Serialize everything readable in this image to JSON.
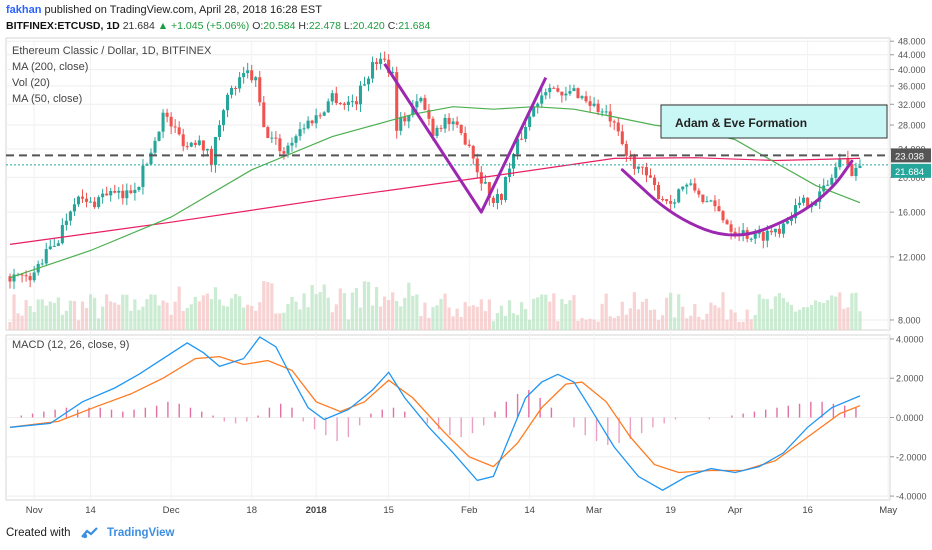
{
  "header": {
    "author": "fakhan",
    "published": "published on TradingView.com, April 28, 2018 16:28 EST",
    "symbol": "BITFINEX:ETCUSD, 1D",
    "last": "21.684",
    "change": "▲ +1.045 (+5.06%)",
    "o_label": "O:",
    "o": "20.584",
    "h_label": "H:",
    "h": "22.478",
    "l_label": "L:",
    "l": "20.420",
    "c_label": "C:",
    "c": "21.684"
  },
  "legend": {
    "title": "Ethereum Classic / Dollar, 1D, BITFINEX",
    "ma200": "MA (200, close)",
    "vol": "Vol (20)",
    "ma50": "MA (50, close)",
    "macd": "MACD (12, 26, close, 9)"
  },
  "annotation": "Adam & Eve Formation",
  "price_badges": {
    "level": "23.038",
    "last": "21.684"
  },
  "footer": {
    "created_with": "Created with",
    "brand": "TradingView"
  },
  "colors": {
    "up": "#26a69a",
    "down": "#ef5350",
    "ma50": "#4caf50",
    "ma200": "#e91e63",
    "pattern": "#9c27b0",
    "macd": "#2196f3",
    "signal": "#ff7b21",
    "annotation_bg": "#c9f7f5"
  },
  "chart_data": [
    {
      "type": "candlestick",
      "title": "Ethereum Classic / Dollar, 1D, BITFINEX",
      "y_ticks": [
        "48.000",
        "44.000",
        "40.000",
        "36.000",
        "32.000",
        "28.000",
        "24.000",
        "20.000",
        "16.000",
        "12.000",
        "8.000"
      ],
      "y_scale": "log",
      "ylim": [
        7.5,
        49
      ],
      "x_ticks": [
        "Nov",
        "14",
        "Dec",
        "18",
        "2018",
        "15",
        "Feb",
        "14",
        "Mar",
        "19",
        "Apr",
        "16",
        "May"
      ],
      "x_tick_index": [
        6,
        20,
        40,
        60,
        76,
        94,
        114,
        129,
        145,
        164,
        180,
        198,
        218
      ],
      "close_path": [
        [
          0,
          10.6
        ],
        [
          5,
          10.3
        ],
        [
          8,
          11.8
        ],
        [
          12,
          13.5
        ],
        [
          16,
          17.5
        ],
        [
          20,
          16.8
        ],
        [
          24,
          18.2
        ],
        [
          28,
          17.6
        ],
        [
          32,
          19.5
        ],
        [
          35,
          23.5
        ],
        [
          38,
          30
        ],
        [
          41,
          27
        ],
        [
          44,
          24.5
        ],
        [
          47,
          26
        ],
        [
          50,
          22
        ],
        [
          53,
          32
        ],
        [
          56,
          36
        ],
        [
          59,
          39
        ],
        [
          61,
          37
        ],
        [
          63,
          27
        ],
        [
          66,
          25
        ],
        [
          68,
          23.5
        ],
        [
          71,
          26.5
        ],
        [
          74,
          28.5
        ],
        [
          77,
          30
        ],
        [
          80,
          34
        ],
        [
          83,
          32
        ],
        [
          86,
          33
        ],
        [
          89,
          39
        ],
        [
          92,
          44
        ],
        [
          95,
          39
        ],
        [
          96,
          28
        ],
        [
          99,
          30
        ],
        [
          102,
          33
        ],
        [
          105,
          27
        ],
        [
          108,
          29
        ],
        [
          111,
          27
        ],
        [
          114,
          25
        ],
        [
          116,
          21
        ],
        [
          118,
          19
        ],
        [
          120,
          17
        ],
        [
          122,
          18
        ],
        [
          125,
          23
        ],
        [
          128,
          28
        ],
        [
          131,
          33
        ],
        [
          134,
          37
        ],
        [
          137,
          33
        ],
        [
          140,
          35
        ],
        [
          143,
          33
        ],
        [
          146,
          31
        ],
        [
          149,
          29
        ],
        [
          151,
          26
        ],
        [
          153,
          23
        ],
        [
          155,
          22
        ],
        [
          158,
          20
        ],
        [
          161,
          18
        ],
        [
          164,
          17
        ],
        [
          167,
          19
        ],
        [
          170,
          18.5
        ],
        [
          173,
          17
        ],
        [
          176,
          16
        ],
        [
          179,
          14.5
        ],
        [
          182,
          14
        ],
        [
          185,
          13.6
        ],
        [
          188,
          14
        ],
        [
          191,
          14.5
        ],
        [
          194,
          16
        ],
        [
          197,
          17
        ],
        [
          200,
          17.5
        ],
        [
          203,
          19
        ],
        [
          206,
          22.5
        ],
        [
          209,
          21
        ],
        [
          211,
          21.7
        ]
      ],
      "ma50_path": [
        [
          0,
          10.5
        ],
        [
          20,
          12.5
        ],
        [
          40,
          15.5
        ],
        [
          60,
          21
        ],
        [
          80,
          26
        ],
        [
          100,
          30
        ],
        [
          110,
          31.5
        ],
        [
          120,
          31
        ],
        [
          130,
          31.5
        ],
        [
          140,
          31
        ],
        [
          150,
          29.5
        ],
        [
          160,
          28
        ],
        [
          170,
          27
        ],
        [
          180,
          25.5
        ],
        [
          190,
          22
        ],
        [
          200,
          19
        ],
        [
          211,
          17
        ]
      ],
      "ma200_path": [
        [
          0,
          13
        ],
        [
          40,
          15
        ],
        [
          80,
          17.5
        ],
        [
          120,
          20.2
        ],
        [
          150,
          22.6
        ],
        [
          170,
          22.7
        ],
        [
          190,
          22.3
        ],
        [
          211,
          22.6
        ]
      ],
      "resistance_level": 23.038,
      "last_price": 21.684,
      "pattern_adam": [
        [
          93,
          41.5
        ],
        [
          117,
          16
        ],
        [
          133,
          38
        ]
      ],
      "pattern_eve": [
        [
          152,
          21
        ],
        [
          165,
          15.4
        ],
        [
          180,
          13.3
        ],
        [
          195,
          15.5
        ],
        [
          204,
          18.5
        ],
        [
          209,
          22.2
        ]
      ]
    },
    {
      "type": "line",
      "title": "MACD (12, 26, close, 9)",
      "y_ticks": [
        "4.0000",
        "2.0000",
        "0.0000",
        "-2.0000",
        "-4.0000"
      ],
      "ylim": [
        -4.2,
        4.2
      ],
      "series": [
        {
          "name": "MACD",
          "points": [
            [
              0,
              -0.5
            ],
            [
              10,
              -0.3
            ],
            [
              18,
              0.8
            ],
            [
              26,
              1.5
            ],
            [
              32,
              2.2
            ],
            [
              38,
              3.0
            ],
            [
              44,
              3.8
            ],
            [
              48,
              3.3
            ],
            [
              52,
              2.6
            ],
            [
              58,
              3.0
            ],
            [
              62,
              4.1
            ],
            [
              66,
              3.6
            ],
            [
              70,
              2.0
            ],
            [
              74,
              0.5
            ],
            [
              78,
              -0.1
            ],
            [
              84,
              0.4
            ],
            [
              90,
              1.4
            ],
            [
              94,
              2.3
            ],
            [
              98,
              1.0
            ],
            [
              104,
              -0.5
            ],
            [
              110,
              -1.8
            ],
            [
              116,
              -3.2
            ],
            [
              120,
              -3.0
            ],
            [
              124,
              -1.0
            ],
            [
              128,
              1.0
            ],
            [
              132,
              1.8
            ],
            [
              136,
              2.2
            ],
            [
              140,
              1.8
            ],
            [
              144,
              0.5
            ],
            [
              150,
              -1.5
            ],
            [
              156,
              -3.0
            ],
            [
              162,
              -3.7
            ],
            [
              168,
              -3.0
            ],
            [
              174,
              -2.6
            ],
            [
              180,
              -2.8
            ],
            [
              186,
              -2.5
            ],
            [
              192,
              -1.8
            ],
            [
              198,
              -0.5
            ],
            [
              204,
              0.5
            ],
            [
              211,
              1.1
            ]
          ]
        },
        {
          "name": "Signal",
          "points": [
            [
              0,
              -0.5
            ],
            [
              12,
              -0.2
            ],
            [
              22,
              0.6
            ],
            [
              30,
              1.2
            ],
            [
              38,
              2.0
            ],
            [
              46,
              3.0
            ],
            [
              52,
              3.1
            ],
            [
              58,
              2.7
            ],
            [
              64,
              2.9
            ],
            [
              70,
              2.4
            ],
            [
              76,
              0.8
            ],
            [
              82,
              0.3
            ],
            [
              88,
              0.8
            ],
            [
              94,
              1.9
            ],
            [
              100,
              1.0
            ],
            [
              108,
              -0.8
            ],
            [
              114,
              -2.0
            ],
            [
              120,
              -2.5
            ],
            [
              126,
              -1.3
            ],
            [
              132,
              0.5
            ],
            [
              138,
              1.7
            ],
            [
              142,
              1.8
            ],
            [
              148,
              0.8
            ],
            [
              154,
              -1.0
            ],
            [
              160,
              -2.4
            ],
            [
              166,
              -2.8
            ],
            [
              174,
              -2.7
            ],
            [
              182,
              -2.7
            ],
            [
              190,
              -2.2
            ],
            [
              198,
              -1.0
            ],
            [
              206,
              0.2
            ],
            [
              211,
              0.6
            ]
          ]
        }
      ],
      "histogram": [
        0,
        0.1,
        0.2,
        0.3,
        0.4,
        0.5,
        0.4,
        0.5,
        0.5,
        0.4,
        0.3,
        0.4,
        0.5,
        0.6,
        0.8,
        0.7,
        0.5,
        0.3,
        0.1,
        -0.2,
        -0.3,
        -0.2,
        0.1,
        0.5,
        0.7,
        0.5,
        -0.2,
        -0.6,
        -0.9,
        -1.2,
        -1.0,
        -0.4,
        0.2,
        0.4,
        0.5,
        0.3,
        0.0,
        -0.3,
        -0.6,
        -0.9,
        -1.0,
        -0.8,
        -0.4,
        0.3,
        0.8,
        1.2,
        1.4,
        1.0,
        0.5,
        0.0,
        -0.5,
        -0.9,
        -1.2,
        -1.4,
        -1.3,
        -1.1,
        -0.8,
        -0.5,
        -0.3,
        -0.1,
        0.0,
        0.0,
        -0.1,
        0.0,
        0.1,
        0.2,
        0.3,
        0.4,
        0.5,
        0.6,
        0.7,
        0.8,
        0.8,
        0.7,
        0.6,
        0.5
      ]
    }
  ]
}
